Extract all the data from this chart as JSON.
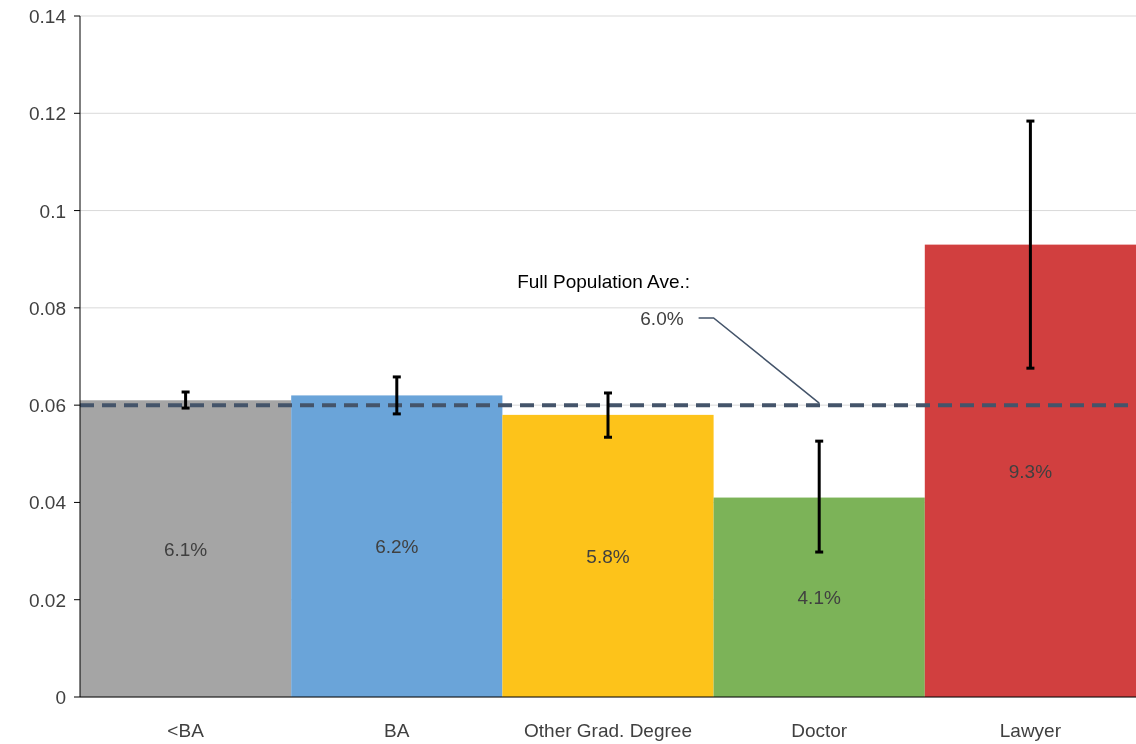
{
  "chart_data": {
    "type": "bar",
    "categories": [
      "<BA",
      "BA",
      "Other Grad. Degree",
      "Doctor",
      "Lawyer"
    ],
    "values": [
      0.061,
      0.062,
      0.058,
      0.041,
      0.093
    ],
    "colors": [
      "#a5a5a5",
      "#6aa4d9",
      "#fdc31a",
      "#7cb358",
      "#d13f3f"
    ],
    "value_labels": [
      "6.1%",
      "6.2%",
      "5.8%",
      "4.1%",
      "9.3%"
    ],
    "errors": [
      [
        0.0594,
        0.0627
      ],
      [
        0.0582,
        0.0658
      ],
      [
        0.0534,
        0.0625
      ],
      [
        0.0298,
        0.0526
      ],
      [
        0.0676,
        0.1184
      ]
    ],
    "ylim": [
      0,
      0.14
    ],
    "yticks": [
      0,
      0.02,
      0.04,
      0.06,
      0.08,
      0.1,
      0.12,
      0.14
    ],
    "grid": "y",
    "ref_lines": [
      {
        "axis": "y",
        "value": 0.06,
        "color": "#44546a",
        "line_style": "dashed"
      }
    ],
    "annotations": [
      "Full Population Ave.:",
      {
        "text": "6.0%",
        "x": "Doctor",
        "y": 0.06
      }
    ]
  }
}
